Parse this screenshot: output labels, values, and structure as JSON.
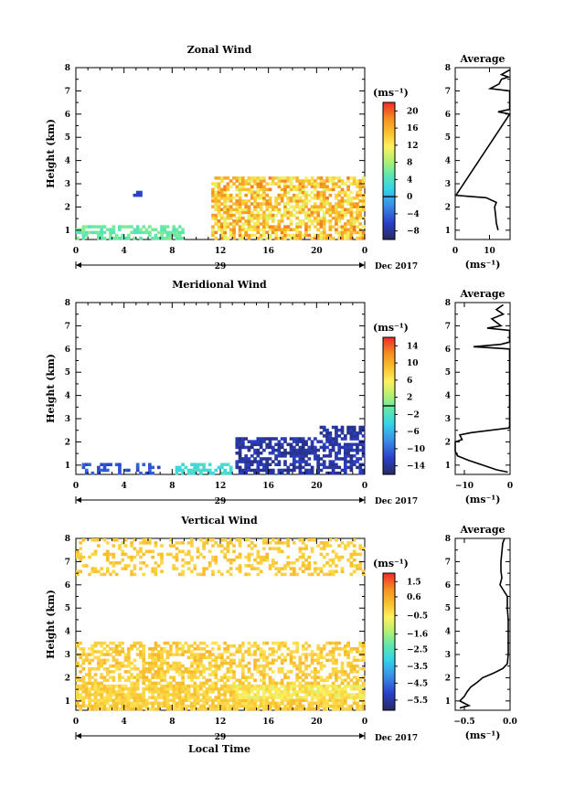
{
  "chart_data": [
    {
      "type": "heatmap",
      "title": "Zonal Wind",
      "ylabel": "Height (km)",
      "xlim": [
        0,
        24
      ],
      "ylim": [
        0.6,
        8
      ],
      "x_ticks": [
        "0",
        "4",
        "8",
        "12",
        "16",
        "20",
        "0"
      ],
      "y_ticks": [
        "1",
        "2",
        "3",
        "4",
        "5",
        "6",
        "7",
        "8"
      ],
      "date_label": "29",
      "month_label": "Dec 2017",
      "colorbar": {
        "unit": "(ms⁻¹)",
        "min": -10,
        "max": 22,
        "tick_values": [
          20,
          16,
          12,
          8,
          4,
          0,
          -4,
          -8
        ],
        "tick_labels": [
          "20",
          "16",
          "12",
          "8",
          "4",
          "0",
          "−4",
          "−8"
        ],
        "marker": 0
      },
      "avg": {
        "title": "Average",
        "xlabel": "(ms⁻¹)",
        "xlim": [
          0,
          16
        ],
        "x_ticks": [
          0,
          10
        ],
        "x_tick_labels": [
          "0",
          "10"
        ],
        "profile": [
          [
            1.0,
            12.5
          ],
          [
            1.3,
            12.0
          ],
          [
            1.6,
            11.8
          ],
          [
            2.0,
            11.5
          ],
          [
            2.2,
            12.0
          ],
          [
            2.4,
            9.0
          ],
          [
            2.5,
            0.2
          ],
          [
            6.0,
            15.9
          ],
          [
            6.1,
            12.5
          ],
          [
            6.2,
            15.9
          ],
          [
            7.0,
            15.9
          ],
          [
            7.1,
            10.2
          ],
          [
            7.3,
            12.8
          ],
          [
            7.5,
            13.5
          ],
          [
            7.6,
            15.5
          ],
          [
            7.7,
            13.5
          ],
          [
            7.9,
            15.9
          ]
        ]
      }
    },
    {
      "type": "heatmap",
      "title": "Meridional Wind",
      "ylabel": "Height (km)",
      "xlim": [
        0,
        24
      ],
      "ylim": [
        0.6,
        8
      ],
      "x_ticks": [
        "0",
        "4",
        "8",
        "12",
        "16",
        "20",
        "0"
      ],
      "y_ticks": [
        "1",
        "2",
        "3",
        "4",
        "5",
        "6",
        "7",
        "8"
      ],
      "date_label": "29",
      "month_label": "Dec 2017",
      "colorbar": {
        "unit": "(ms⁻¹)",
        "min": -16,
        "max": 16,
        "tick_values": [
          14,
          10,
          6,
          2,
          -2,
          -6,
          -10,
          -14
        ],
        "tick_labels": [
          "14",
          "10",
          "6",
          "2",
          "−2",
          "−6",
          "−10",
          "−14"
        ],
        "marker": 0
      },
      "avg": {
        "title": "Average",
        "xlabel": "(ms⁻¹)",
        "xlim": [
          -12,
          0
        ],
        "x_ticks": [
          -10,
          0
        ],
        "x_tick_labels": [
          "−10",
          "0"
        ],
        "profile": [
          [
            0.7,
            -0.5
          ],
          [
            0.8,
            -3.0
          ],
          [
            1.0,
            -6.0
          ],
          [
            1.2,
            -9.0
          ],
          [
            1.4,
            -11.5
          ],
          [
            1.6,
            -12.0
          ],
          [
            2.0,
            -12.0
          ],
          [
            2.1,
            -10.5
          ],
          [
            2.3,
            -11.0
          ],
          [
            2.4,
            -8.5
          ],
          [
            2.6,
            -0.2
          ],
          [
            2.7,
            -0.1
          ],
          [
            6.0,
            -0.1
          ],
          [
            6.1,
            -8.0
          ],
          [
            6.2,
            -2.0
          ],
          [
            6.3,
            -0.1
          ],
          [
            6.8,
            -0.1
          ],
          [
            6.9,
            -5.0
          ],
          [
            7.0,
            -2.0
          ],
          [
            7.3,
            -4.0
          ],
          [
            7.5,
            -1.5
          ],
          [
            7.7,
            -3.0
          ],
          [
            7.9,
            -1.5
          ]
        ]
      }
    },
    {
      "type": "heatmap",
      "title": "Vertical Wind",
      "ylabel": "Height (km)",
      "xlabel": "Local Time",
      "xlim": [
        0,
        24
      ],
      "ylim": [
        0.6,
        8
      ],
      "x_ticks": [
        "0",
        "4",
        "8",
        "12",
        "16",
        "20",
        "0"
      ],
      "y_ticks": [
        "1",
        "2",
        "3",
        "4",
        "5",
        "6",
        "7",
        "8"
      ],
      "date_label": "29",
      "month_label": "Dec 2017",
      "colorbar": {
        "unit": "(ms⁻¹)",
        "min": -6.1,
        "max": 2.0,
        "tick_values": [
          1.5,
          0.6,
          -0.5,
          -1.6,
          -2.5,
          -3.5,
          -4.5,
          -5.5
        ],
        "tick_labels": [
          "1.5",
          "0.6",
          "−0.5",
          "−1.6",
          "−2.5",
          "−3.5",
          "−4.5",
          "−5.5"
        ],
        "marker": null
      },
      "avg": {
        "title": "Average",
        "xlabel": "(ms⁻¹)",
        "xlim": [
          -0.6,
          0
        ],
        "x_ticks": [
          -0.5,
          0
        ],
        "x_tick_labels": [
          "−0.5",
          "0.0"
        ],
        "profile": [
          [
            0.7,
            -0.55
          ],
          [
            0.8,
            -0.45
          ],
          [
            0.9,
            -0.5
          ],
          [
            1.0,
            -0.55
          ],
          [
            1.2,
            -0.5
          ],
          [
            1.4,
            -0.47
          ],
          [
            1.6,
            -0.43
          ],
          [
            1.8,
            -0.36
          ],
          [
            2.0,
            -0.3
          ],
          [
            2.2,
            -0.18
          ],
          [
            2.4,
            -0.08
          ],
          [
            2.6,
            -0.03
          ],
          [
            3.0,
            -0.02
          ],
          [
            3.5,
            -0.02
          ],
          [
            4.0,
            -0.02
          ],
          [
            4.5,
            -0.02
          ],
          [
            5.0,
            -0.03
          ],
          [
            5.5,
            -0.03
          ],
          [
            6.0,
            -0.11
          ],
          [
            6.3,
            -0.09
          ],
          [
            6.6,
            -0.1
          ],
          [
            7.0,
            -0.1
          ],
          [
            7.4,
            -0.09
          ],
          [
            7.8,
            -0.08
          ],
          [
            8.0,
            -0.06
          ]
        ]
      }
    }
  ]
}
